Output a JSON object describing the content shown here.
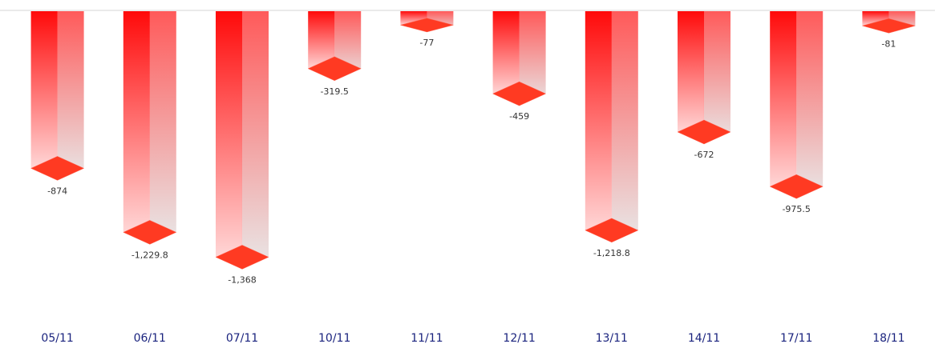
{
  "chart_data": {
    "type": "bar3d",
    "categories": [
      "05/11",
      "06/11",
      "07/11",
      "10/11",
      "11/11",
      "12/11",
      "13/11",
      "14/11",
      "17/11",
      "18/11"
    ],
    "values": [
      -874,
      -1229.8,
      -1368,
      -319.5,
      -77,
      -459,
      -1218.8,
      -672,
      -975.5,
      -81
    ],
    "value_labels": [
      "-874",
      "-1,229.8",
      "-1,368",
      "-319.5",
      "-77",
      "-459",
      "-1,218.8",
      "-672",
      "-975.5",
      "-81"
    ],
    "color": "#ff0000",
    "ylim": [
      -1700,
      0
    ]
  }
}
